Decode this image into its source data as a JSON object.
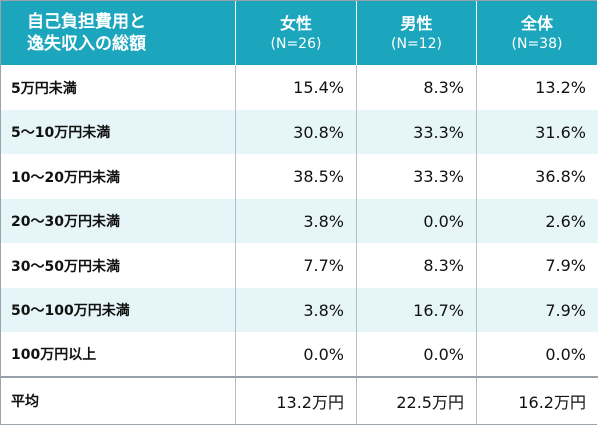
{
  "header": {
    "category_line1": "自己負担費用と",
    "category_line2": "逸失収入の総額",
    "columns": [
      {
        "title": "女性",
        "sub": "(N=26)"
      },
      {
        "title": "男性",
        "sub": "(N=12)"
      },
      {
        "title": "全体",
        "sub": "(N=38)"
      }
    ]
  },
  "rows": [
    {
      "label": "5万円未満",
      "values": [
        "15.4%",
        "8.3%",
        "13.2%"
      ]
    },
    {
      "label": "5～10万円未満",
      "values": [
        "30.8%",
        "33.3%",
        "31.6%"
      ]
    },
    {
      "label": "10～20万円未満",
      "values": [
        "38.5%",
        "33.3%",
        "36.8%"
      ]
    },
    {
      "label": "20～30万円未満",
      "values": [
        "3.8%",
        "0.0%",
        "2.6%"
      ]
    },
    {
      "label": "30～50万円未満",
      "values": [
        "7.7%",
        "8.3%",
        "7.9%"
      ]
    },
    {
      "label": "50～100万円未満",
      "values": [
        "3.8%",
        "16.7%",
        "7.9%"
      ]
    },
    {
      "label": "100万円以上",
      "values": [
        "0.0%",
        "0.0%",
        "0.0%"
      ]
    }
  ],
  "average": {
    "label": "平均",
    "values": [
      "13.2万円",
      "22.5万円",
      "16.2万円"
    ]
  },
  "colors": {
    "header_bg": "#1ba6bd",
    "stripe_bg": "#e6f6f8",
    "header_text": "#ffffff"
  }
}
